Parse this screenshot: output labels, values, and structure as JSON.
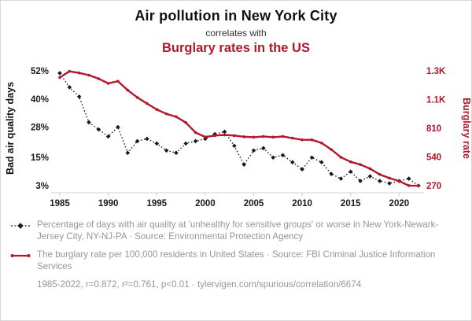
{
  "header": {
    "title": "Air pollution in New York City",
    "subtitle": "correlates with",
    "title2": "Burglary rates in the US"
  },
  "colors": {
    "title_black": "#111111",
    "accent_red": "#b2182b",
    "series_black": "#1a1a1a",
    "footer_gray": "#969696"
  },
  "chart_data": {
    "type": "line",
    "x": [
      1985,
      1986,
      1987,
      1988,
      1989,
      1990,
      1991,
      1992,
      1993,
      1994,
      1995,
      1996,
      1997,
      1998,
      1999,
      2000,
      2001,
      2002,
      2003,
      2004,
      2005,
      2006,
      2007,
      2008,
      2009,
      2010,
      2011,
      2012,
      2013,
      2014,
      2015,
      2016,
      2017,
      2018,
      2019,
      2020,
      2021,
      2022
    ],
    "x_ticks": [
      1985,
      1990,
      1995,
      2000,
      2005,
      2010,
      2015,
      2020
    ],
    "left_axis": {
      "label": "Bad air quality days",
      "color": "#1a1a1a",
      "min": 3,
      "max": 52,
      "ticks": [
        {
          "value": 52,
          "label": "52%"
        },
        {
          "value": 40,
          "label": "40%"
        },
        {
          "value": 28,
          "label": "28%"
        },
        {
          "value": 15,
          "label": "15%"
        },
        {
          "value": 3,
          "label": "3%"
        }
      ]
    },
    "right_axis": {
      "label": "Burglary rate",
      "color": "#b2182b",
      "min": 270,
      "max": 1350,
      "ticks": [
        {
          "value": 1350,
          "label": "1.3K"
        },
        {
          "value": 1080,
          "label": "1.1K"
        },
        {
          "value": 810,
          "label": "810"
        },
        {
          "value": 540,
          "label": "540"
        },
        {
          "value": 270,
          "label": "270"
        }
      ]
    },
    "series": [
      {
        "name": "Percentage of days with bad air quality, New York-Newark-Jersey City",
        "axis": "left",
        "color": "#1a1a1a",
        "style": "dotted-diamond",
        "values": [
          51,
          45,
          41,
          30,
          27,
          24,
          28,
          17,
          22,
          23,
          21,
          18,
          17,
          21,
          22,
          23,
          25,
          26,
          20,
          12,
          18,
          19,
          15,
          16,
          13,
          10,
          15,
          13,
          8,
          6,
          9,
          5,
          7,
          5,
          4,
          5,
          6,
          3
        ]
      },
      {
        "name": "Burglary rate per 100,000 residents in the US",
        "axis": "right",
        "color": "#b2182b",
        "style": "solid-dot",
        "values": [
          1287,
          1345,
          1330,
          1309,
          1276,
          1232,
          1252,
          1168,
          1099,
          1042,
          987,
          945,
          918,
          863,
          770,
          728,
          741,
          747,
          741,
          730,
          726,
          733,
          726,
          733,
          717,
          701,
          701,
          672,
          610,
          537,
          494,
          468,
          430,
          376,
          341,
          314,
          271,
          269
        ]
      }
    ]
  },
  "footer": {
    "legend": [
      {
        "marker": "black-dotted-diamond",
        "text": "Percentage of days with air quality at 'unhealthy for sensitive groups' or worse in New York-Newark-Jersey City, NY-NJ-PA · Source: Environmental Protection Agency"
      },
      {
        "marker": "red-line",
        "text": "The burglary rate per 100,000 residents in United States · Source: FBI Criminal Justice Information Services"
      }
    ],
    "stats": "1985-2022, r=0.872, r²=0.761, p<0.01 · tylervigen.com/spurious/correlation/6674"
  }
}
